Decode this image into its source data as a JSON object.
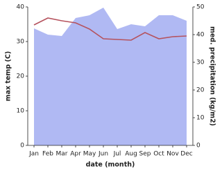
{
  "chart_data": {
    "type": "area-line-dual",
    "x_label": "date (month)",
    "y_label": "max temp (C)",
    "y2_label": "med. precipitation (kg/m2)",
    "categories": [
      "Jan",
      "Feb",
      "Mar",
      "Apr",
      "May",
      "Jun",
      "Jul",
      "Aug",
      "Sep",
      "Oct",
      "Nov",
      "Dec"
    ],
    "series": [
      {
        "name": "med. precipitation",
        "color": "#b0b9f3",
        "axis": "y2",
        "kind": "area",
        "values": [
          42.25,
          40,
          39.5,
          46,
          47,
          49.75,
          42,
          43.75,
          43,
          47,
          47,
          45
        ]
      },
      {
        "name": "max temp",
        "color": "#b5525d",
        "axis": "y",
        "kind": "line",
        "values": [
          34.8,
          36.8,
          36,
          35.4,
          33.6,
          30.8,
          30.6,
          30.4,
          32.6,
          30.8,
          31.4,
          31.6
        ]
      }
    ],
    "ylim": [
      0,
      40
    ],
    "yticks": [
      0,
      10,
      20,
      30,
      40
    ],
    "y2lim": [
      0,
      50
    ],
    "y2ticks": [
      0,
      10,
      20,
      30,
      40,
      50
    ]
  }
}
